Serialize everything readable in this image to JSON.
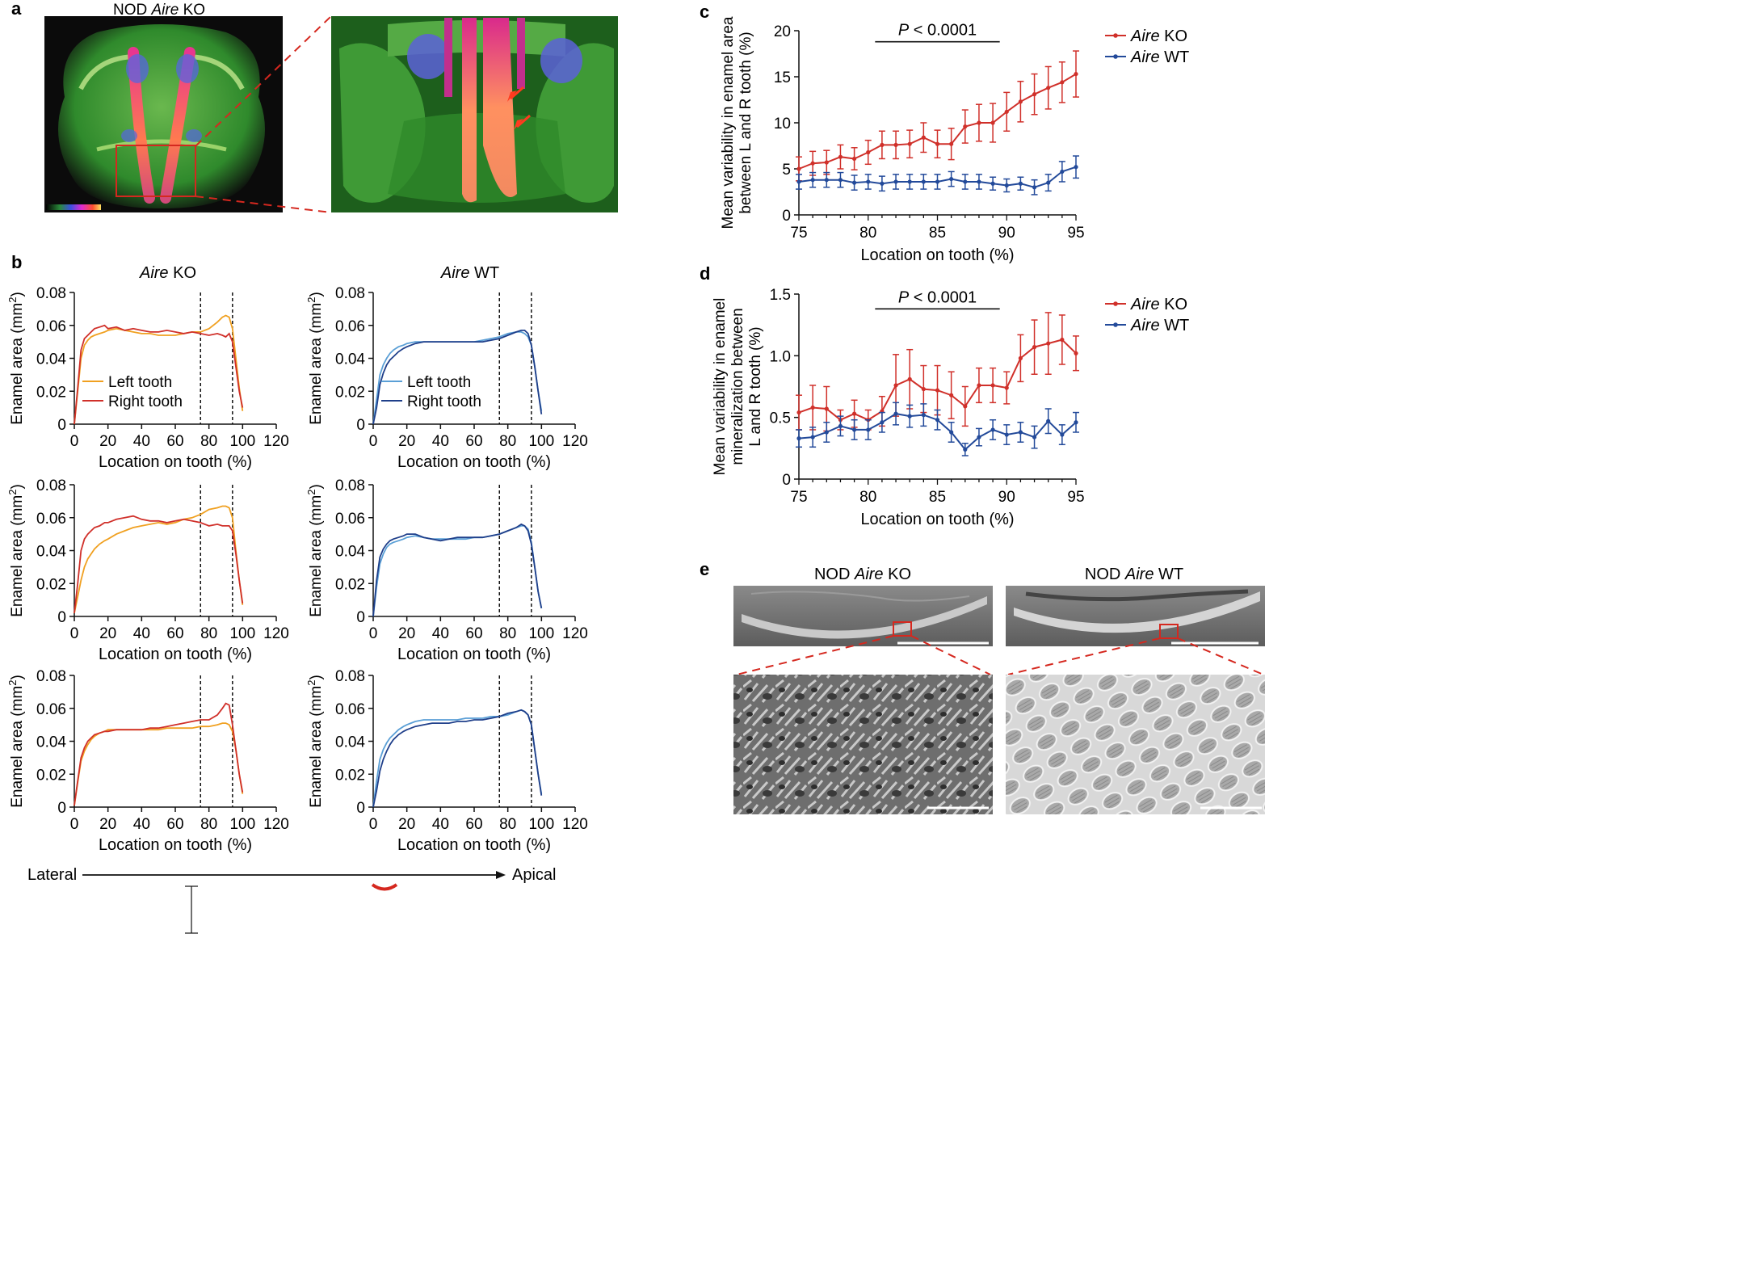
{
  "panels": {
    "a": "a",
    "b": "b",
    "c": "c",
    "d": "d",
    "e": "e"
  },
  "panel_a": {
    "title_pre": "NOD ",
    "title_italic": "Aire",
    "title_post": " KO"
  },
  "panel_b": {
    "col_titles": [
      {
        "italic": "Aire",
        "rest": " KO"
      },
      {
        "italic": "Aire",
        "rest": " WT"
      }
    ],
    "xlabel": "Location on tooth (%)",
    "ylabel": "Enamel area (mm²)",
    "ylabel_base": "Enamel area (mm",
    "ylabel_sup": "2",
    "ylabel_end": ")",
    "xticks": [
      "0",
      "20",
      "40",
      "60",
      "80",
      "100",
      "120"
    ],
    "yticks": [
      "0",
      "0.02",
      "0.04",
      "0.06",
      "0.08"
    ],
    "legend_ko": [
      {
        "label": "Left tooth",
        "color": "#f0a020"
      },
      {
        "label": "Right tooth",
        "color": "#d0302a"
      }
    ],
    "legend_wt": [
      {
        "label": "Left tooth",
        "color": "#5a9fd6"
      },
      {
        "label": "Right tooth",
        "color": "#1f3f8a"
      }
    ],
    "dashed_lines_x": [
      75,
      94
    ],
    "direction": {
      "left": "Lateral",
      "right": "Apical"
    }
  },
  "panel_c": {
    "p_text_italic": "P",
    "p_text_rest": " < 0.0001",
    "ylabel_line1": "Mean variability in enamel area",
    "ylabel_line2": "between L and R tooth (%)",
    "xlabel": "Location on tooth (%)",
    "xticks": [
      "75",
      "80",
      "85",
      "90",
      "95"
    ],
    "yticks": [
      "0",
      "5",
      "10",
      "15",
      "20"
    ]
  },
  "panel_d": {
    "p_text_italic": "P",
    "p_text_rest": " < 0.0001",
    "ylabel_line1": "Mean variability in enamel",
    "ylabel_line2": "mineralization between",
    "ylabel_line3": "L and R tooth (%)",
    "xlabel": "Location on tooth (%)",
    "xticks": [
      "75",
      "80",
      "85",
      "90",
      "95"
    ],
    "yticks": [
      "0",
      "0.5",
      "1.0",
      "1.5"
    ]
  },
  "legend_cd": [
    {
      "italic": "Aire",
      "rest": " KO",
      "color": "#d0302a"
    },
    {
      "italic": "Aire",
      "rest": " WT",
      "color": "#234a9a"
    }
  ],
  "panel_e": {
    "left_title_pre": "NOD ",
    "left_title_italic": "Aire",
    "left_title_post": " KO",
    "right_title_pre": "NOD ",
    "right_title_italic": "Aire",
    "right_title_post": " WT"
  },
  "chart_data": [
    {
      "type": "line",
      "panel": "c",
      "xlabel": "Location on tooth (%)",
      "ylabel": "Mean variability in enamel area between L and R tooth (%)",
      "xlim": [
        75,
        95
      ],
      "ylim": [
        0,
        20
      ],
      "x": [
        75,
        76,
        77,
        78,
        79,
        80,
        81,
        82,
        83,
        84,
        85,
        86,
        87,
        88,
        89,
        90,
        91,
        92,
        93,
        94,
        95
      ],
      "series": [
        {
          "name": "Aire KO",
          "color": "#d0302a",
          "values": [
            5.0,
            5.6,
            5.7,
            6.3,
            6.1,
            6.8,
            7.6,
            7.6,
            7.7,
            8.4,
            7.7,
            7.7,
            9.6,
            10.0,
            10.0,
            11.2,
            12.3,
            13.1,
            13.8,
            14.4,
            15.3
          ],
          "errors": [
            1.3,
            1.3,
            1.3,
            1.3,
            1.2,
            1.3,
            1.5,
            1.5,
            1.5,
            1.6,
            1.5,
            1.7,
            1.8,
            2.0,
            2.1,
            2.1,
            2.2,
            2.2,
            2.3,
            2.2,
            2.5
          ]
        },
        {
          "name": "Aire WT",
          "color": "#234a9a",
          "values": [
            3.6,
            3.8,
            3.8,
            3.8,
            3.5,
            3.6,
            3.4,
            3.6,
            3.6,
            3.6,
            3.6,
            3.9,
            3.6,
            3.6,
            3.4,
            3.2,
            3.4,
            3.0,
            3.5,
            4.7,
            5.2
          ],
          "errors": [
            0.8,
            0.8,
            0.8,
            0.8,
            0.8,
            0.8,
            0.8,
            0.8,
            0.8,
            0.8,
            0.8,
            0.8,
            0.8,
            0.8,
            0.7,
            0.7,
            0.7,
            0.8,
            0.9,
            1.1,
            1.2
          ]
        }
      ],
      "significance": {
        "x_range": [
          80.5,
          89.5
        ],
        "y": 18.8
      }
    },
    {
      "type": "line",
      "panel": "d",
      "xlabel": "Location on tooth (%)",
      "ylabel": "Mean variability in enamel mineralization between L and R tooth (%)",
      "xlim": [
        75,
        95
      ],
      "ylim": [
        0,
        1.5
      ],
      "x": [
        75,
        76,
        77,
        78,
        79,
        80,
        81,
        82,
        83,
        84,
        85,
        86,
        87,
        88,
        89,
        90,
        91,
        92,
        93,
        94,
        95
      ],
      "series": [
        {
          "name": "Aire KO",
          "color": "#d0302a",
          "values": [
            0.54,
            0.58,
            0.57,
            0.48,
            0.53,
            0.48,
            0.55,
            0.76,
            0.81,
            0.73,
            0.72,
            0.68,
            0.59,
            0.76,
            0.76,
            0.74,
            0.98,
            1.07,
            1.1,
            1.13,
            1.02
          ],
          "errors": [
            0.14,
            0.18,
            0.18,
            0.08,
            0.11,
            0.08,
            0.12,
            0.25,
            0.24,
            0.19,
            0.2,
            0.19,
            0.16,
            0.14,
            0.14,
            0.13,
            0.19,
            0.22,
            0.25,
            0.2,
            0.14
          ]
        },
        {
          "name": "Aire WT",
          "color": "#234a9a",
          "values": [
            0.33,
            0.34,
            0.38,
            0.43,
            0.4,
            0.4,
            0.46,
            0.53,
            0.51,
            0.52,
            0.48,
            0.38,
            0.24,
            0.34,
            0.4,
            0.36,
            0.38,
            0.34,
            0.47,
            0.36,
            0.46
          ],
          "errors": [
            0.07,
            0.08,
            0.08,
            0.08,
            0.08,
            0.08,
            0.08,
            0.09,
            0.09,
            0.09,
            0.08,
            0.08,
            0.05,
            0.07,
            0.08,
            0.08,
            0.08,
            0.09,
            0.1,
            0.08,
            0.08
          ]
        }
      ],
      "significance": {
        "x_range": [
          80.5,
          89.5
        ],
        "y": 1.38
      }
    },
    {
      "type": "line",
      "panel": "b",
      "row": 1,
      "group": "Aire KO",
      "xlim": [
        0,
        120
      ],
      "ylim": [
        0,
        0.08
      ],
      "x": [
        0,
        2,
        4,
        6,
        8,
        10,
        12,
        15,
        18,
        20,
        25,
        30,
        35,
        40,
        45,
        50,
        55,
        60,
        65,
        70,
        75,
        80,
        85,
        88,
        90,
        92,
        94,
        96,
        98,
        100
      ],
      "series": [
        {
          "name": "Left tooth",
          "color": "#f0a020",
          "values": [
            0.0,
            0.02,
            0.04,
            0.048,
            0.051,
            0.053,
            0.054,
            0.055,
            0.056,
            0.057,
            0.058,
            0.057,
            0.056,
            0.055,
            0.055,
            0.054,
            0.054,
            0.054,
            0.055,
            0.056,
            0.056,
            0.058,
            0.062,
            0.065,
            0.066,
            0.065,
            0.058,
            0.04,
            0.022,
            0.008
          ]
        },
        {
          "name": "Right tooth",
          "color": "#d0302a",
          "values": [
            0.0,
            0.022,
            0.045,
            0.052,
            0.054,
            0.056,
            0.058,
            0.059,
            0.06,
            0.058,
            0.059,
            0.057,
            0.058,
            0.057,
            0.056,
            0.056,
            0.057,
            0.056,
            0.055,
            0.056,
            0.055,
            0.054,
            0.055,
            0.054,
            0.053,
            0.055,
            0.05,
            0.035,
            0.02,
            0.01
          ]
        }
      ]
    },
    {
      "type": "line",
      "panel": "b",
      "row": 2,
      "group": "Aire KO",
      "xlim": [
        0,
        120
      ],
      "ylim": [
        0,
        0.08
      ],
      "x": [
        0,
        2,
        4,
        6,
        8,
        10,
        12,
        15,
        18,
        20,
        25,
        30,
        35,
        40,
        45,
        50,
        55,
        60,
        65,
        70,
        75,
        80,
        85,
        88,
        90,
        92,
        94,
        96,
        98,
        100
      ],
      "series": [
        {
          "name": "Left tooth",
          "color": "#f0a020",
          "values": [
            0.002,
            0.012,
            0.022,
            0.03,
            0.035,
            0.038,
            0.041,
            0.044,
            0.046,
            0.047,
            0.05,
            0.052,
            0.054,
            0.055,
            0.056,
            0.057,
            0.056,
            0.057,
            0.059,
            0.06,
            0.062,
            0.065,
            0.066,
            0.067,
            0.067,
            0.066,
            0.06,
            0.04,
            0.022,
            0.007
          ]
        },
        {
          "name": "Right tooth",
          "color": "#d0302a",
          "values": [
            0.002,
            0.02,
            0.04,
            0.047,
            0.05,
            0.052,
            0.054,
            0.055,
            0.057,
            0.057,
            0.059,
            0.06,
            0.061,
            0.059,
            0.058,
            0.058,
            0.057,
            0.058,
            0.059,
            0.058,
            0.057,
            0.055,
            0.056,
            0.055,
            0.055,
            0.055,
            0.052,
            0.038,
            0.022,
            0.008
          ]
        }
      ]
    },
    {
      "type": "line",
      "panel": "b",
      "row": 3,
      "group": "Aire KO",
      "xlim": [
        0,
        120
      ],
      "ylim": [
        0,
        0.08
      ],
      "x": [
        0,
        2,
        4,
        6,
        8,
        10,
        12,
        15,
        18,
        20,
        25,
        30,
        35,
        40,
        45,
        50,
        55,
        60,
        65,
        70,
        75,
        80,
        85,
        88,
        90,
        92,
        94,
        96,
        98,
        100
      ],
      "series": [
        {
          "name": "Left tooth",
          "color": "#f0a020",
          "values": [
            0.001,
            0.015,
            0.028,
            0.034,
            0.038,
            0.041,
            0.043,
            0.045,
            0.046,
            0.047,
            0.047,
            0.047,
            0.047,
            0.047,
            0.047,
            0.047,
            0.048,
            0.048,
            0.048,
            0.048,
            0.049,
            0.049,
            0.05,
            0.051,
            0.051,
            0.05,
            0.046,
            0.035,
            0.02,
            0.008
          ]
        },
        {
          "name": "Right tooth",
          "color": "#d0302a",
          "values": [
            0.001,
            0.016,
            0.03,
            0.036,
            0.04,
            0.042,
            0.044,
            0.045,
            0.046,
            0.046,
            0.047,
            0.047,
            0.047,
            0.047,
            0.048,
            0.048,
            0.049,
            0.05,
            0.051,
            0.052,
            0.053,
            0.053,
            0.056,
            0.06,
            0.063,
            0.062,
            0.05,
            0.035,
            0.02,
            0.009
          ]
        }
      ]
    },
    {
      "type": "line",
      "panel": "b",
      "row": 1,
      "group": "Aire WT",
      "xlim": [
        0,
        120
      ],
      "ylim": [
        0,
        0.08
      ],
      "x": [
        0,
        2,
        4,
        6,
        8,
        10,
        12,
        15,
        18,
        20,
        25,
        30,
        35,
        40,
        45,
        50,
        55,
        60,
        65,
        70,
        75,
        80,
        85,
        88,
        90,
        92,
        94,
        96,
        98,
        100
      ],
      "series": [
        {
          "name": "Left tooth",
          "color": "#5a9fd6",
          "values": [
            0.0,
            0.015,
            0.03,
            0.036,
            0.04,
            0.043,
            0.045,
            0.047,
            0.048,
            0.049,
            0.05,
            0.05,
            0.05,
            0.05,
            0.05,
            0.05,
            0.05,
            0.05,
            0.051,
            0.052,
            0.053,
            0.055,
            0.056,
            0.056,
            0.055,
            0.053,
            0.048,
            0.035,
            0.02,
            0.008
          ]
        },
        {
          "name": "Right tooth",
          "color": "#1f3f8a",
          "values": [
            0.0,
            0.01,
            0.024,
            0.031,
            0.036,
            0.039,
            0.041,
            0.044,
            0.046,
            0.047,
            0.049,
            0.05,
            0.05,
            0.05,
            0.05,
            0.05,
            0.05,
            0.05,
            0.05,
            0.051,
            0.052,
            0.054,
            0.056,
            0.057,
            0.057,
            0.055,
            0.048,
            0.035,
            0.02,
            0.006
          ]
        }
      ]
    },
    {
      "type": "line",
      "panel": "b",
      "row": 2,
      "group": "Aire WT",
      "xlim": [
        0,
        120
      ],
      "ylim": [
        0,
        0.08
      ],
      "x": [
        0,
        2,
        4,
        6,
        8,
        10,
        12,
        15,
        18,
        20,
        25,
        30,
        35,
        40,
        45,
        50,
        55,
        60,
        65,
        70,
        75,
        80,
        85,
        88,
        90,
        92,
        94,
        96,
        98,
        100
      ],
      "series": [
        {
          "name": "Left tooth",
          "color": "#5a9fd6",
          "values": [
            0.0,
            0.018,
            0.032,
            0.038,
            0.042,
            0.044,
            0.045,
            0.046,
            0.047,
            0.048,
            0.049,
            0.048,
            0.047,
            0.047,
            0.047,
            0.047,
            0.047,
            0.048,
            0.048,
            0.049,
            0.05,
            0.052,
            0.054,
            0.055,
            0.055,
            0.053,
            0.045,
            0.03,
            0.015,
            0.005
          ]
        },
        {
          "name": "Right tooth",
          "color": "#1f3f8a",
          "values": [
            0.0,
            0.022,
            0.036,
            0.041,
            0.044,
            0.046,
            0.047,
            0.048,
            0.049,
            0.05,
            0.05,
            0.048,
            0.047,
            0.046,
            0.047,
            0.048,
            0.048,
            0.048,
            0.048,
            0.049,
            0.05,
            0.052,
            0.054,
            0.056,
            0.055,
            0.052,
            0.044,
            0.03,
            0.015,
            0.005
          ]
        }
      ]
    },
    {
      "type": "line",
      "panel": "b",
      "row": 3,
      "group": "Aire WT",
      "xlim": [
        0,
        120
      ],
      "ylim": [
        0,
        0.08
      ],
      "x": [
        0,
        2,
        4,
        6,
        8,
        10,
        12,
        15,
        18,
        20,
        25,
        30,
        35,
        40,
        45,
        50,
        55,
        60,
        65,
        70,
        75,
        80,
        85,
        88,
        90,
        92,
        94,
        96,
        98,
        100
      ],
      "series": [
        {
          "name": "Left tooth",
          "color": "#5a9fd6",
          "values": [
            0.0,
            0.016,
            0.029,
            0.035,
            0.039,
            0.042,
            0.044,
            0.047,
            0.049,
            0.05,
            0.052,
            0.053,
            0.053,
            0.053,
            0.053,
            0.053,
            0.054,
            0.054,
            0.054,
            0.055,
            0.055,
            0.056,
            0.058,
            0.059,
            0.058,
            0.056,
            0.05,
            0.035,
            0.02,
            0.008
          ]
        },
        {
          "name": "Right tooth",
          "color": "#1f3f8a",
          "values": [
            0.0,
            0.01,
            0.022,
            0.029,
            0.034,
            0.038,
            0.041,
            0.044,
            0.046,
            0.047,
            0.049,
            0.05,
            0.051,
            0.051,
            0.051,
            0.052,
            0.052,
            0.053,
            0.053,
            0.054,
            0.055,
            0.057,
            0.058,
            0.059,
            0.058,
            0.056,
            0.05,
            0.035,
            0.02,
            0.007
          ]
        }
      ]
    }
  ]
}
